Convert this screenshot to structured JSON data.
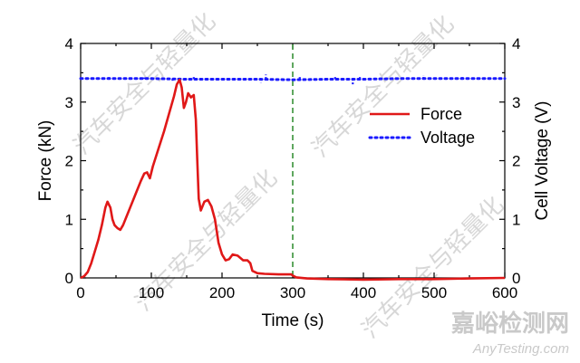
{
  "chart_data": {
    "type": "line",
    "xlabel": "Time (s)",
    "ylabel_left": "Force (kN)",
    "ylabel_right": "Cell Voltage (V)",
    "xlim": [
      0,
      600
    ],
    "ylim_left": [
      0,
      4
    ],
    "ylim_right": [
      0,
      4
    ],
    "x_ticks": [
      "0",
      "100",
      "200",
      "300",
      "400",
      "500",
      "600"
    ],
    "y_ticks_left": [
      "0",
      "1",
      "2",
      "3",
      "4"
    ],
    "y_ticks_right": [
      "0",
      "1",
      "2",
      "3",
      "4"
    ],
    "grid": false,
    "legend_position": "right",
    "vline": {
      "x": 300,
      "style": "dashed",
      "color": "#2a8a2a"
    },
    "series": [
      {
        "name": "Force",
        "axis": "left",
        "color": "#e01818",
        "style": "solid",
        "points": [
          [
            0,
            0.0
          ],
          [
            5,
            0.03
          ],
          [
            10,
            0.1
          ],
          [
            15,
            0.25
          ],
          [
            20,
            0.45
          ],
          [
            25,
            0.65
          ],
          [
            30,
            0.9
          ],
          [
            35,
            1.2
          ],
          [
            38,
            1.3
          ],
          [
            42,
            1.2
          ],
          [
            45,
            1.0
          ],
          [
            48,
            0.9
          ],
          [
            52,
            0.85
          ],
          [
            56,
            0.82
          ],
          [
            60,
            0.9
          ],
          [
            65,
            1.05
          ],
          [
            70,
            1.2
          ],
          [
            75,
            1.35
          ],
          [
            80,
            1.5
          ],
          [
            85,
            1.65
          ],
          [
            90,
            1.78
          ],
          [
            94,
            1.8
          ],
          [
            98,
            1.7
          ],
          [
            102,
            1.9
          ],
          [
            110,
            2.2
          ],
          [
            118,
            2.5
          ],
          [
            125,
            2.8
          ],
          [
            132,
            3.1
          ],
          [
            136,
            3.3
          ],
          [
            140,
            3.38
          ],
          [
            143,
            3.25
          ],
          [
            146,
            2.9
          ],
          [
            149,
            3.0
          ],
          [
            152,
            3.15
          ],
          [
            156,
            3.08
          ],
          [
            160,
            3.12
          ],
          [
            163,
            2.7
          ],
          [
            165,
            2.0
          ],
          [
            167,
            1.35
          ],
          [
            170,
            1.15
          ],
          [
            175,
            1.3
          ],
          [
            180,
            1.33
          ],
          [
            185,
            1.22
          ],
          [
            190,
            1.0
          ],
          [
            195,
            0.6
          ],
          [
            200,
            0.4
          ],
          [
            205,
            0.3
          ],
          [
            210,
            0.32
          ],
          [
            215,
            0.4
          ],
          [
            222,
            0.38
          ],
          [
            230,
            0.3
          ],
          [
            236,
            0.3
          ],
          [
            240,
            0.25
          ],
          [
            243,
            0.12
          ],
          [
            250,
            0.08
          ],
          [
            260,
            0.07
          ],
          [
            280,
            0.06
          ],
          [
            298,
            0.06
          ],
          [
            300,
            0.04
          ],
          [
            305,
            0.01
          ],
          [
            320,
            -0.01
          ],
          [
            350,
            -0.02
          ],
          [
            400,
            -0.03
          ],
          [
            450,
            -0.02
          ],
          [
            500,
            -0.02
          ],
          [
            550,
            -0.01
          ],
          [
            600,
            0.0
          ]
        ]
      },
      {
        "name": "Voltage",
        "axis": "right",
        "color": "#1a1aff",
        "style": "dotted",
        "points": [
          [
            0,
            3.4
          ],
          [
            50,
            3.4
          ],
          [
            100,
            3.4
          ],
          [
            150,
            3.39
          ],
          [
            200,
            3.39
          ],
          [
            250,
            3.39
          ],
          [
            300,
            3.38
          ],
          [
            350,
            3.39
          ],
          [
            400,
            3.39
          ],
          [
            450,
            3.4
          ],
          [
            500,
            3.4
          ],
          [
            550,
            3.4
          ],
          [
            600,
            3.4
          ]
        ],
        "spikes": [
          [
            40,
            3.45
          ],
          [
            90,
            3.42
          ],
          [
            130,
            3.35
          ],
          [
            160,
            3.44
          ],
          [
            255,
            3.33
          ],
          [
            262,
            3.47
          ],
          [
            310,
            3.44
          ],
          [
            360,
            3.45
          ],
          [
            385,
            3.3
          ],
          [
            395,
            3.44
          ],
          [
            425,
            3.42
          ],
          [
            485,
            3.46
          ],
          [
            540,
            3.43
          ]
        ]
      }
    ]
  },
  "watermark": {
    "text": "汽车安全与轻量化"
  },
  "logo": {
    "name": "嘉峪检测网",
    "url": "AnyTesting.com"
  }
}
